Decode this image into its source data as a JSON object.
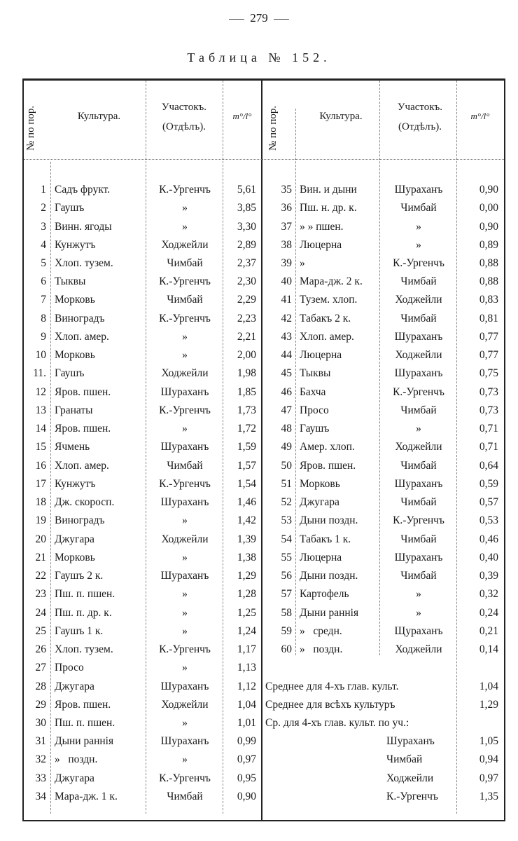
{
  "page_number": "279",
  "title": "Таблица № 152.",
  "headers": {
    "number": "№ по пор.",
    "culture": "Культура.",
    "plot_line1": "Участокъ.",
    "plot_line2": "(Отдѣлъ).",
    "value": "m°/l°"
  },
  "left_rows": [
    {
      "n": "1",
      "culture": "Садъ фрукт.",
      "plot": "К.-Ургенчъ",
      "value": "5,61"
    },
    {
      "n": "2",
      "culture": "Гаушъ",
      "plot": "»",
      "value": "3,85"
    },
    {
      "n": "3",
      "culture": "Винн. ягоды",
      "plot": "»",
      "value": "3,30"
    },
    {
      "n": "4",
      "culture": "Кунжутъ",
      "plot": "Ходжейли",
      "value": "2,89"
    },
    {
      "n": "5",
      "culture": "Хлоп. тузем.",
      "plot": "Чимбай",
      "value": "2,37"
    },
    {
      "n": "6",
      "culture": "Тыквы",
      "plot": "К.-Ургенчъ",
      "value": "2,30"
    },
    {
      "n": "7",
      "culture": "Морковь",
      "plot": "Чимбай",
      "value": "2,29"
    },
    {
      "n": "8",
      "culture": "Виноградъ",
      "plot": "К.-Ургенчъ",
      "value": "2,23"
    },
    {
      "n": "9",
      "culture": "Хлоп. амер.",
      "plot": "»",
      "value": "2,21"
    },
    {
      "n": "10",
      "culture": "Морковь",
      "plot": "»",
      "value": "2,00"
    },
    {
      "n": "11.",
      "culture": "Гаушъ",
      "plot": "Ходжейли",
      "value": "1,98"
    },
    {
      "n": "12",
      "culture": "Яров. пшен.",
      "plot": "Шураханъ",
      "value": "1,85"
    },
    {
      "n": "13",
      "culture": "Гранаты",
      "plot": "К.-Ургенчъ",
      "value": "1,73"
    },
    {
      "n": "14",
      "culture": "Яров. пшен.",
      "plot": "»",
      "value": "1,72"
    },
    {
      "n": "15",
      "culture": "Ячмень",
      "plot": "Шураханъ",
      "value": "1,59"
    },
    {
      "n": "16",
      "culture": "Хлоп. амер.",
      "plot": "Чимбай",
      "value": "1,57"
    },
    {
      "n": "17",
      "culture": "Кунжутъ",
      "plot": "К.-Ургенчъ",
      "value": "1,54"
    },
    {
      "n": "18",
      "culture": "Дж. скоросп.",
      "plot": "Шураханъ",
      "value": "1,46"
    },
    {
      "n": "19",
      "culture": "Виноградъ",
      "plot": "»",
      "value": "1,42"
    },
    {
      "n": "20",
      "culture": "Джугара",
      "plot": "Ходжейли",
      "value": "1,39"
    },
    {
      "n": "21",
      "culture": "Морковь",
      "plot": "»",
      "value": "1,38"
    },
    {
      "n": "22",
      "culture": "Гаушъ 2 к.",
      "plot": "Шураханъ",
      "value": "1,29"
    },
    {
      "n": "23",
      "culture": "Пш. п. пшен.",
      "plot": "»",
      "value": "1,28"
    },
    {
      "n": "24",
      "culture": "Пш. п. др. к.",
      "plot": "»",
      "value": "1,25"
    },
    {
      "n": "25",
      "culture": "Гаушъ 1 к.",
      "plot": "»",
      "value": "1,24"
    },
    {
      "n": "26",
      "culture": "Хлоп. тузем.",
      "plot": "К.-Ургенчъ",
      "value": "1,17"
    },
    {
      "n": "27",
      "culture": "Просо",
      "plot": "»",
      "value": "1,13"
    },
    {
      "n": "28",
      "culture": "Джугара",
      "plot": "Шураханъ",
      "value": "1,12"
    },
    {
      "n": "29",
      "culture": "Яров. пшен.",
      "plot": "Ходжейли",
      "value": "1,04"
    },
    {
      "n": "30",
      "culture": "Пш. п. пшен.",
      "plot": "»",
      "value": "1,01"
    },
    {
      "n": "31",
      "culture": "Дыни раннія",
      "plot": "Шураханъ",
      "value": "0,99"
    },
    {
      "n": "32",
      "culture": "»   поздн.",
      "plot": "»",
      "value": "0,97"
    },
    {
      "n": "33",
      "culture": "Джугара",
      "plot": "К.-Ургенчъ",
      "value": "0,95"
    },
    {
      "n": "34",
      "culture": "Мара-дж. 1 к.",
      "plot": "Чимбай",
      "value": "0,90"
    }
  ],
  "right_rows": [
    {
      "n": "35",
      "culture": "Вин. и дыни",
      "plot": "Шураханъ",
      "value": "0,90"
    },
    {
      "n": "36",
      "culture": "Пш. н. др. к.",
      "plot": "Чимбай",
      "value": "0,00"
    },
    {
      "n": "37",
      "culture": "» » пшен.",
      "plot": "»",
      "value": "0,90"
    },
    {
      "n": "38",
      "culture": "Люцерна",
      "plot": "»",
      "value": "0,89"
    },
    {
      "n": "39",
      "culture": "»",
      "plot": "К.-Ургенчъ",
      "value": "0,88"
    },
    {
      "n": "40",
      "culture": "Мара-дж. 2 к.",
      "plot": "Чимбай",
      "value": "0,88"
    },
    {
      "n": "41",
      "culture": "Тузем. хлоп.",
      "plot": "Ходжейли",
      "value": "0,83"
    },
    {
      "n": "42",
      "culture": "Табакъ 2 к.",
      "plot": "Чимбай",
      "value": "0,81"
    },
    {
      "n": "43",
      "culture": "Хлоп. амер.",
      "plot": "Шураханъ",
      "value": "0,77"
    },
    {
      "n": "44",
      "culture": "Люцерна",
      "plot": "Ходжейли",
      "value": "0,77"
    },
    {
      "n": "45",
      "culture": "Тыквы",
      "plot": "Шураханъ",
      "value": "0,75"
    },
    {
      "n": "46",
      "culture": "Бахча",
      "plot": "К.-Ургенчъ",
      "value": "0,73"
    },
    {
      "n": "47",
      "culture": "Просо",
      "plot": "Чимбай",
      "value": "0,73"
    },
    {
      "n": "48",
      "culture": "Гаушъ",
      "plot": "»",
      "value": "0,71"
    },
    {
      "n": "49",
      "culture": "Амер. хлоп.",
      "plot": "Ходжейли",
      "value": "0,71"
    },
    {
      "n": "50",
      "culture": "Яров. пшен.",
      "plot": "Чимбай",
      "value": "0,64"
    },
    {
      "n": "51",
      "culture": "Морковь",
      "plot": "Шураханъ",
      "value": "0,59"
    },
    {
      "n": "52",
      "culture": "Джугара",
      "plot": "Чимбай",
      "value": "0,57"
    },
    {
      "n": "53",
      "culture": "Дыни поздн.",
      "plot": "К.-Ургенчъ",
      "value": "0,53"
    },
    {
      "n": "54",
      "culture": "Табакъ 1 к.",
      "plot": "Чимбай",
      "value": "0,46"
    },
    {
      "n": "55",
      "culture": "Люцерна",
      "plot": "Шураханъ",
      "value": "0,40"
    },
    {
      "n": "56",
      "culture": "Дыни поздн.",
      "plot": "Чимбай",
      "value": "0,39"
    },
    {
      "n": "57",
      "culture": "Картофель",
      "plot": "»",
      "value": "0,32"
    },
    {
      "n": "58",
      "culture": "Дыни раннія",
      "plot": "»",
      "value": "0,24"
    },
    {
      "n": "59",
      "culture": "»   средн.",
      "plot": "Щураханъ",
      "value": "0,21"
    },
    {
      "n": "60",
      "culture": "»   поздн.",
      "plot": "Ходжейли",
      "value": "0,14"
    }
  ],
  "summary": {
    "avg_main_label": "Среднее для 4-хъ глав. культ.",
    "avg_main_value": "1,04",
    "avg_all_label": "Среднее для всѣхъ культуръ",
    "avg_all_value": "1,29",
    "by_plot_label": "Ср. для 4-хъ глав. культ. по уч.:",
    "by_plot": [
      {
        "plot": "Шураханъ",
        "value": "1,05"
      },
      {
        "plot": "Чимбай",
        "value": "0,94"
      },
      {
        "plot": "Ходжейли",
        "value": "0,97"
      },
      {
        "plot": "К.-Ургенчъ",
        "value": "1,35"
      }
    ]
  }
}
